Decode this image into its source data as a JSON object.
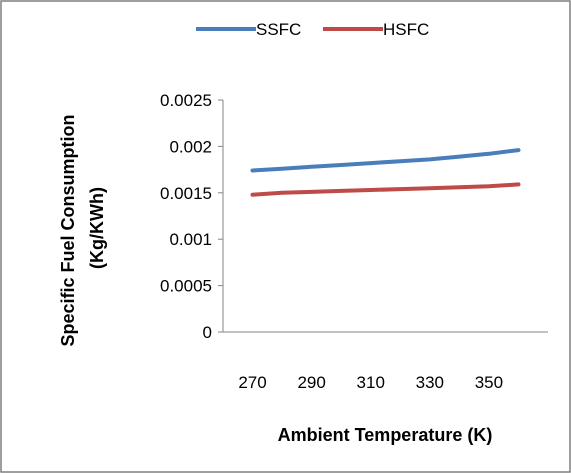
{
  "chart_data": {
    "type": "line",
    "title": "",
    "xlabel": "Ambient Temperature (K)",
    "ylabel_lines": [
      "Specific Fuel Consumption",
      "(Kg/KWh)"
    ],
    "x": [
      270,
      280,
      290,
      300,
      310,
      320,
      330,
      340,
      350,
      360
    ],
    "xticks": [
      "270",
      "290",
      "310",
      "330",
      "350"
    ],
    "xlim": [
      260,
      370
    ],
    "ylim": [
      0,
      0.0025
    ],
    "yticks": [
      "0",
      "0.0005",
      "0.001",
      "0.0015",
      "0.002",
      "0.0025"
    ],
    "grid": false,
    "legend_position": "top",
    "series": [
      {
        "name": "SSFC",
        "color": "#4a7ebb",
        "values": [
          0.00174,
          0.00176,
          0.00178,
          0.0018,
          0.00182,
          0.00184,
          0.00186,
          0.00189,
          0.00192,
          0.00196
        ]
      },
      {
        "name": "HSFC",
        "color": "#be4b48",
        "values": [
          0.00148,
          0.0015,
          0.00151,
          0.00152,
          0.00153,
          0.00154,
          0.00155,
          0.00156,
          0.00157,
          0.00159
        ]
      }
    ]
  }
}
